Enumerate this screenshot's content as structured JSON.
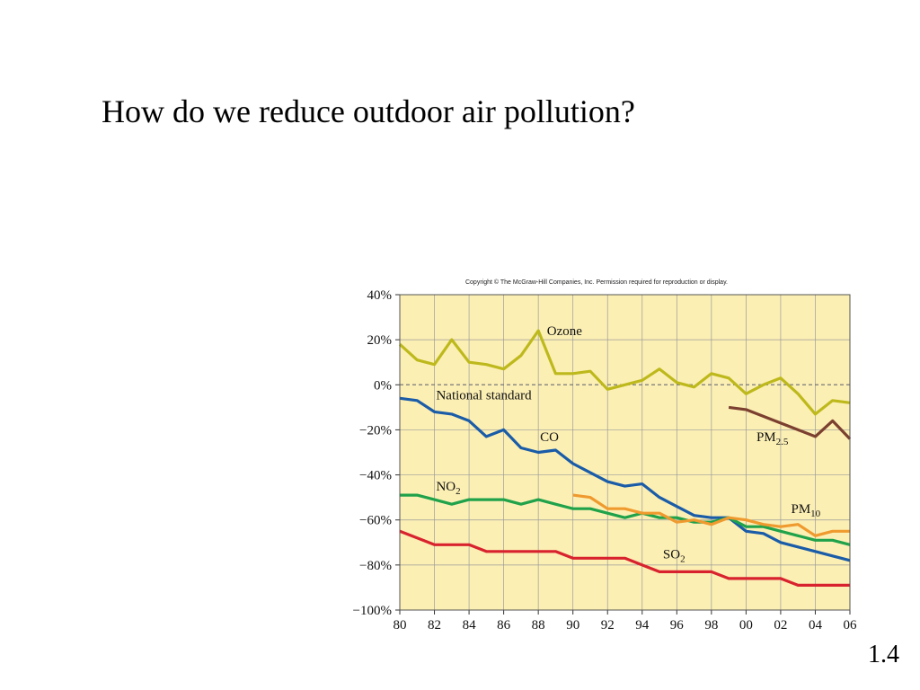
{
  "slide": {
    "title": "How do we reduce outdoor air pollution?",
    "number": "1.4"
  },
  "chart_data": {
    "type": "line",
    "copyright": "Copyright © The McGraw-Hill Companies, Inc. Permission required for reproduction or display.",
    "xlim": [
      1980,
      2006
    ],
    "ylim": [
      -100,
      40
    ],
    "x_ticks": [
      {
        "value": 1980,
        "label": "80"
      },
      {
        "value": 1982,
        "label": "82"
      },
      {
        "value": 1984,
        "label": "84"
      },
      {
        "value": 1986,
        "label": "86"
      },
      {
        "value": 1988,
        "label": "88"
      },
      {
        "value": 1990,
        "label": "90"
      },
      {
        "value": 1992,
        "label": "92"
      },
      {
        "value": 1994,
        "label": "94"
      },
      {
        "value": 1996,
        "label": "96"
      },
      {
        "value": 1998,
        "label": "98"
      },
      {
        "value": 2000,
        "label": "00"
      },
      {
        "value": 2002,
        "label": "02"
      },
      {
        "value": 2004,
        "label": "04"
      },
      {
        "value": 2006,
        "label": "06"
      }
    ],
    "y_ticks": [
      {
        "value": 40,
        "label": "40%"
      },
      {
        "value": 20,
        "label": "20%"
      },
      {
        "value": 0,
        "label": "0%"
      },
      {
        "value": -20,
        "label": "−20%"
      },
      {
        "value": -40,
        "label": "−40%"
      },
      {
        "value": -60,
        "label": "−60%"
      },
      {
        "value": -80,
        "label": "−80%"
      },
      {
        "value": -100,
        "label": "−100%"
      }
    ],
    "grid": true,
    "colors": {
      "background": "#fcefb4",
      "grid": "#9a9a9a",
      "reference_line": "#777777"
    },
    "reference_line": {
      "value": 0,
      "label": "National standard"
    },
    "series": [
      {
        "name": "Ozone",
        "label_main": "Ozone",
        "label_sub": "",
        "color": "#bdb91c",
        "x": [
          1980,
          1981,
          1982,
          1983,
          1984,
          1985,
          1986,
          1987,
          1988,
          1989,
          1990,
          1991,
          1992,
          1993,
          1994,
          1995,
          1996,
          1997,
          1998,
          1999,
          2000,
          2001,
          2002,
          2003,
          2004,
          2005,
          2006
        ],
        "y": [
          18,
          11,
          9,
          20,
          10,
          9,
          7,
          13,
          24,
          5,
          5,
          6,
          -2,
          0,
          2,
          7,
          1,
          -1,
          5,
          3,
          -4,
          0,
          3,
          -4,
          -13,
          -7,
          -8
        ]
      },
      {
        "name": "CO",
        "label_main": "CO",
        "label_sub": "",
        "color": "#1a5ca8",
        "x": [
          1980,
          1981,
          1982,
          1983,
          1984,
          1985,
          1986,
          1987,
          1988,
          1989,
          1990,
          1991,
          1992,
          1993,
          1994,
          1995,
          1996,
          1997,
          1998,
          1999,
          2000,
          2001,
          2002,
          2003,
          2004,
          2005,
          2006
        ],
        "y": [
          -6,
          -7,
          -12,
          -13,
          -16,
          -23,
          -20,
          -28,
          -30,
          -29,
          -35,
          -39,
          -43,
          -45,
          -44,
          -50,
          -54,
          -58,
          -59,
          -59,
          -65,
          -66,
          -70,
          -72,
          -74,
          -76,
          -78
        ]
      },
      {
        "name": "NO2",
        "label_main": "NO",
        "label_sub": "2",
        "color": "#1fa24a",
        "x": [
          1980,
          1981,
          1982,
          1983,
          1984,
          1985,
          1986,
          1987,
          1988,
          1989,
          1990,
          1991,
          1992,
          1993,
          1994,
          1995,
          1996,
          1997,
          1998,
          1999,
          2000,
          2001,
          2002,
          2003,
          2004,
          2005,
          2006
        ],
        "y": [
          -49,
          -49,
          -51,
          -53,
          -51,
          -51,
          -51,
          -53,
          -51,
          -53,
          -55,
          -55,
          -57,
          -59,
          -57,
          -59,
          -59,
          -61,
          -61,
          -59,
          -63,
          -63,
          -65,
          -67,
          -69,
          -69,
          -71
        ]
      },
      {
        "name": "SO2",
        "label_main": "SO",
        "label_sub": "2",
        "color": "#d8232e",
        "x": [
          1980,
          1981,
          1982,
          1983,
          1984,
          1985,
          1986,
          1987,
          1988,
          1989,
          1990,
          1991,
          1992,
          1993,
          1994,
          1995,
          1996,
          1997,
          1998,
          1999,
          2000,
          2001,
          2002,
          2003,
          2004,
          2005,
          2006
        ],
        "y": [
          -65,
          -68,
          -71,
          -71,
          -71,
          -74,
          -74,
          -74,
          -74,
          -74,
          -77,
          -77,
          -77,
          -77,
          -80,
          -83,
          -83,
          -83,
          -83,
          -86,
          -86,
          -86,
          -86,
          -89,
          -89,
          -89,
          -89
        ]
      },
      {
        "name": "PM10",
        "label_main": "PM",
        "label_sub": "10",
        "color": "#ef9a2e",
        "x": [
          1990,
          1991,
          1992,
          1993,
          1994,
          1995,
          1996,
          1997,
          1998,
          1999,
          2000,
          2001,
          2002,
          2003,
          2004,
          2005,
          2006
        ],
        "y": [
          -49,
          -50,
          -55,
          -55,
          -57,
          -57,
          -61,
          -60,
          -62,
          -59,
          -60,
          -62,
          -63,
          -62,
          -67,
          -65,
          -65
        ]
      },
      {
        "name": "PM2.5",
        "label_main": "PM",
        "label_sub": "2.5",
        "color": "#7b4030",
        "x": [
          1999,
          2000,
          2001,
          2002,
          2003,
          2004,
          2005,
          2006
        ],
        "y": [
          -10,
          -11,
          -14,
          -17,
          -20,
          -23,
          -16,
          -24
        ]
      }
    ]
  }
}
